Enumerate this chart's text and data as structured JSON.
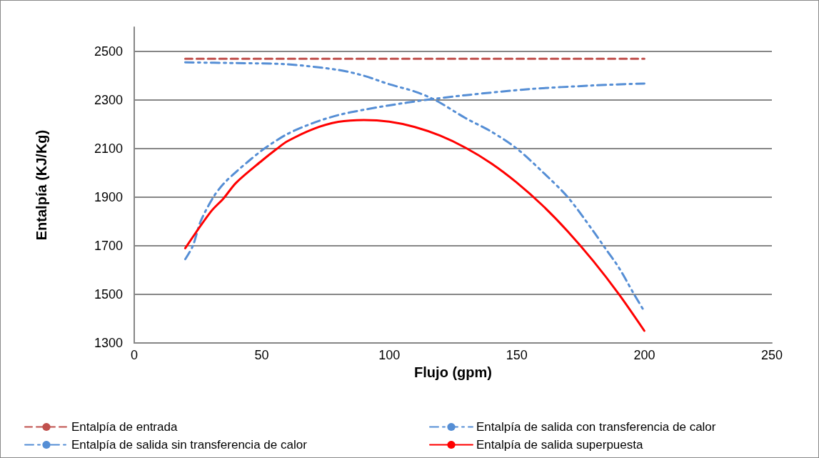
{
  "chart_data": {
    "type": "line",
    "xlabel": "Flujo (gpm)",
    "ylabel": "Entalpía (KJ/Kg)",
    "xlim": [
      0,
      250
    ],
    "xticks": [
      0,
      50,
      100,
      150,
      200,
      250
    ],
    "ylim": [
      1300,
      2600
    ],
    "yticks": [
      1300,
      1500,
      1700,
      1900,
      2100,
      2300,
      2500
    ],
    "grid": "y",
    "legend": "bottom",
    "marker": "none",
    "series": [
      {
        "name": "Entalpía de entrada",
        "color": "#c0504d",
        "line_style": "dashed",
        "x": [
          20,
          200
        ],
        "values": [
          2470,
          2470
        ]
      },
      {
        "name": "Entalpía de salida con transferencia de calor",
        "color": "#558ed5",
        "line_style": "dashdot",
        "x": [
          20,
          23,
          26,
          31,
          35,
          40,
          45,
          51,
          60,
          70,
          80,
          90,
          100,
          114,
          130,
          155,
          180,
          200
        ],
        "values": [
          1645,
          1700,
          1800,
          1900,
          1955,
          2005,
          2050,
          2100,
          2160,
          2205,
          2238,
          2260,
          2278,
          2300,
          2320,
          2345,
          2360,
          2368
        ]
      },
      {
        "name": "Entalpía de salida sin transferencia de calor",
        "color": "#558ed5",
        "line_style": "dashdotdot",
        "x": [
          20,
          40,
          60,
          80,
          90,
          100,
          110,
          118,
          130,
          140,
          150,
          160,
          170,
          180,
          184,
          190,
          196,
          200
        ],
        "values": [
          2455,
          2452,
          2447,
          2424,
          2400,
          2365,
          2335,
          2300,
          2225,
          2170,
          2100,
          2005,
          1900,
          1760,
          1700,
          1610,
          1500,
          1430
        ]
      },
      {
        "name": "Entalpía de salida superpuesta",
        "color": "#ff0000",
        "line_style": "solid",
        "x": [
          20,
          30,
          35,
          40,
          50,
          56,
          60,
          70,
          80,
          90,
          100,
          110,
          120,
          130,
          140,
          150,
          160,
          170,
          180,
          190,
          200
        ],
        "values": [
          1690,
          1840,
          1895,
          1960,
          2050,
          2100,
          2130,
          2180,
          2210,
          2218,
          2211,
          2189,
          2153,
          2103,
          2039,
          1960,
          1867,
          1759,
          1637,
          1501,
          1350
        ]
      }
    ]
  }
}
